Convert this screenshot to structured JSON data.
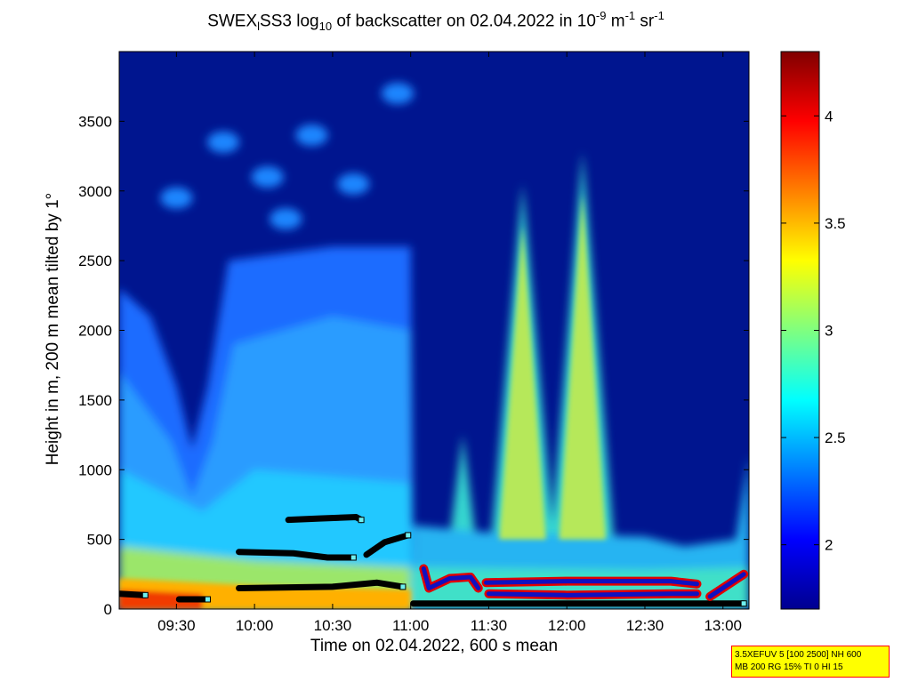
{
  "chart_data": {
    "type": "heatmap",
    "title": {
      "prefix": "SWEX",
      "sub1": "l",
      "mid1": "SS3 log",
      "sub2": "10",
      "mid2": " of backscatter on 02.04.2022 in 10",
      "sup1": "-9",
      "mid3": " m",
      "sup2": "-1",
      "mid4": " sr",
      "sup3": "-1"
    },
    "xlabel": "Time on 02.04.2022, 600 s mean",
    "ylabel": "Height in m, 200 m mean tilted by 1°",
    "x_range": [
      "09:08",
      "13:10"
    ],
    "x_ticks": [
      "09:30",
      "10:00",
      "10:30",
      "11:00",
      "11:30",
      "12:00",
      "12:30",
      "13:00"
    ],
    "y_range": [
      0,
      4000
    ],
    "y_ticks": [
      0,
      500,
      1000,
      1500,
      2000,
      2500,
      3000,
      3500
    ],
    "colorbar": {
      "range": [
        1.7,
        4.3
      ],
      "ticks": [
        "2",
        "2.5",
        "3",
        "3.5",
        "4"
      ],
      "colormap": "jet"
    },
    "features": {
      "aerosol_layer_top_before_11": [
        {
          "time": "09:08",
          "height": 2300
        },
        {
          "time": "09:20",
          "height": 2100
        },
        {
          "time": "09:30",
          "height": 1600
        },
        {
          "time": "09:36",
          "height": 1150
        },
        {
          "time": "09:42",
          "height": 1600
        },
        {
          "time": "09:50",
          "height": 2500
        },
        {
          "time": "10:30",
          "height": 2600
        },
        {
          "time": "11:00",
          "height": 2600
        }
      ],
      "plumes": [
        {
          "peak_time": "11:20",
          "peak_height": 1250
        },
        {
          "peak_time": "11:43",
          "peak_height": 3050
        },
        {
          "peak_time": "12:06",
          "peak_height": 3280
        }
      ],
      "layer_markers": [
        {
          "points": [
            [
              "09:08",
              110
            ],
            [
              "09:18",
              100
            ]
          ]
        },
        {
          "points": [
            [
              "09:31",
              70
            ],
            [
              "09:42",
              70
            ]
          ]
        },
        {
          "points": [
            [
              "09:54",
              150
            ],
            [
              "10:30",
              160
            ],
            [
              "10:47",
              190
            ],
            [
              "10:57",
              160
            ]
          ]
        },
        {
          "points": [
            [
              "09:54",
              410
            ],
            [
              "10:15",
              400
            ],
            [
              "10:28",
              370
            ],
            [
              "10:38",
              370
            ]
          ]
        },
        {
          "points": [
            [
              "10:13",
              640
            ],
            [
              "10:25",
              650
            ],
            [
              "10:39",
              660
            ],
            [
              "10:41",
              640
            ]
          ]
        },
        {
          "points": [
            [
              "10:43",
              390
            ],
            [
              "10:50",
              480
            ],
            [
              "10:59",
              530
            ]
          ]
        },
        {
          "points": [
            [
              "11:01",
              40
            ],
            [
              "12:00",
              40
            ],
            [
              "13:08",
              40
            ]
          ]
        }
      ],
      "red_markers": [
        {
          "points": [
            [
              "11:05",
              290
            ],
            [
              "11:07",
              150
            ],
            [
              "11:15",
              220
            ],
            [
              "11:23",
              230
            ],
            [
              "11:26",
              150
            ]
          ]
        },
        {
          "points": [
            [
              "11:29",
              190
            ],
            [
              "12:00",
              200
            ],
            [
              "12:40",
              200
            ],
            [
              "12:50",
              180
            ]
          ]
        },
        {
          "points": [
            [
              "11:30",
              110
            ],
            [
              "12:00",
              100
            ],
            [
              "12:40",
              110
            ],
            [
              "12:50",
              110
            ]
          ]
        },
        {
          "points": [
            [
              "12:55",
              90
            ],
            [
              "13:08",
              250
            ]
          ]
        }
      ]
    }
  },
  "info_box": {
    "line1": "3.5XEFUV 5 [100 2500] NH 600",
    "line2": "MB 200 RG 15% TI 0 HI 15"
  }
}
